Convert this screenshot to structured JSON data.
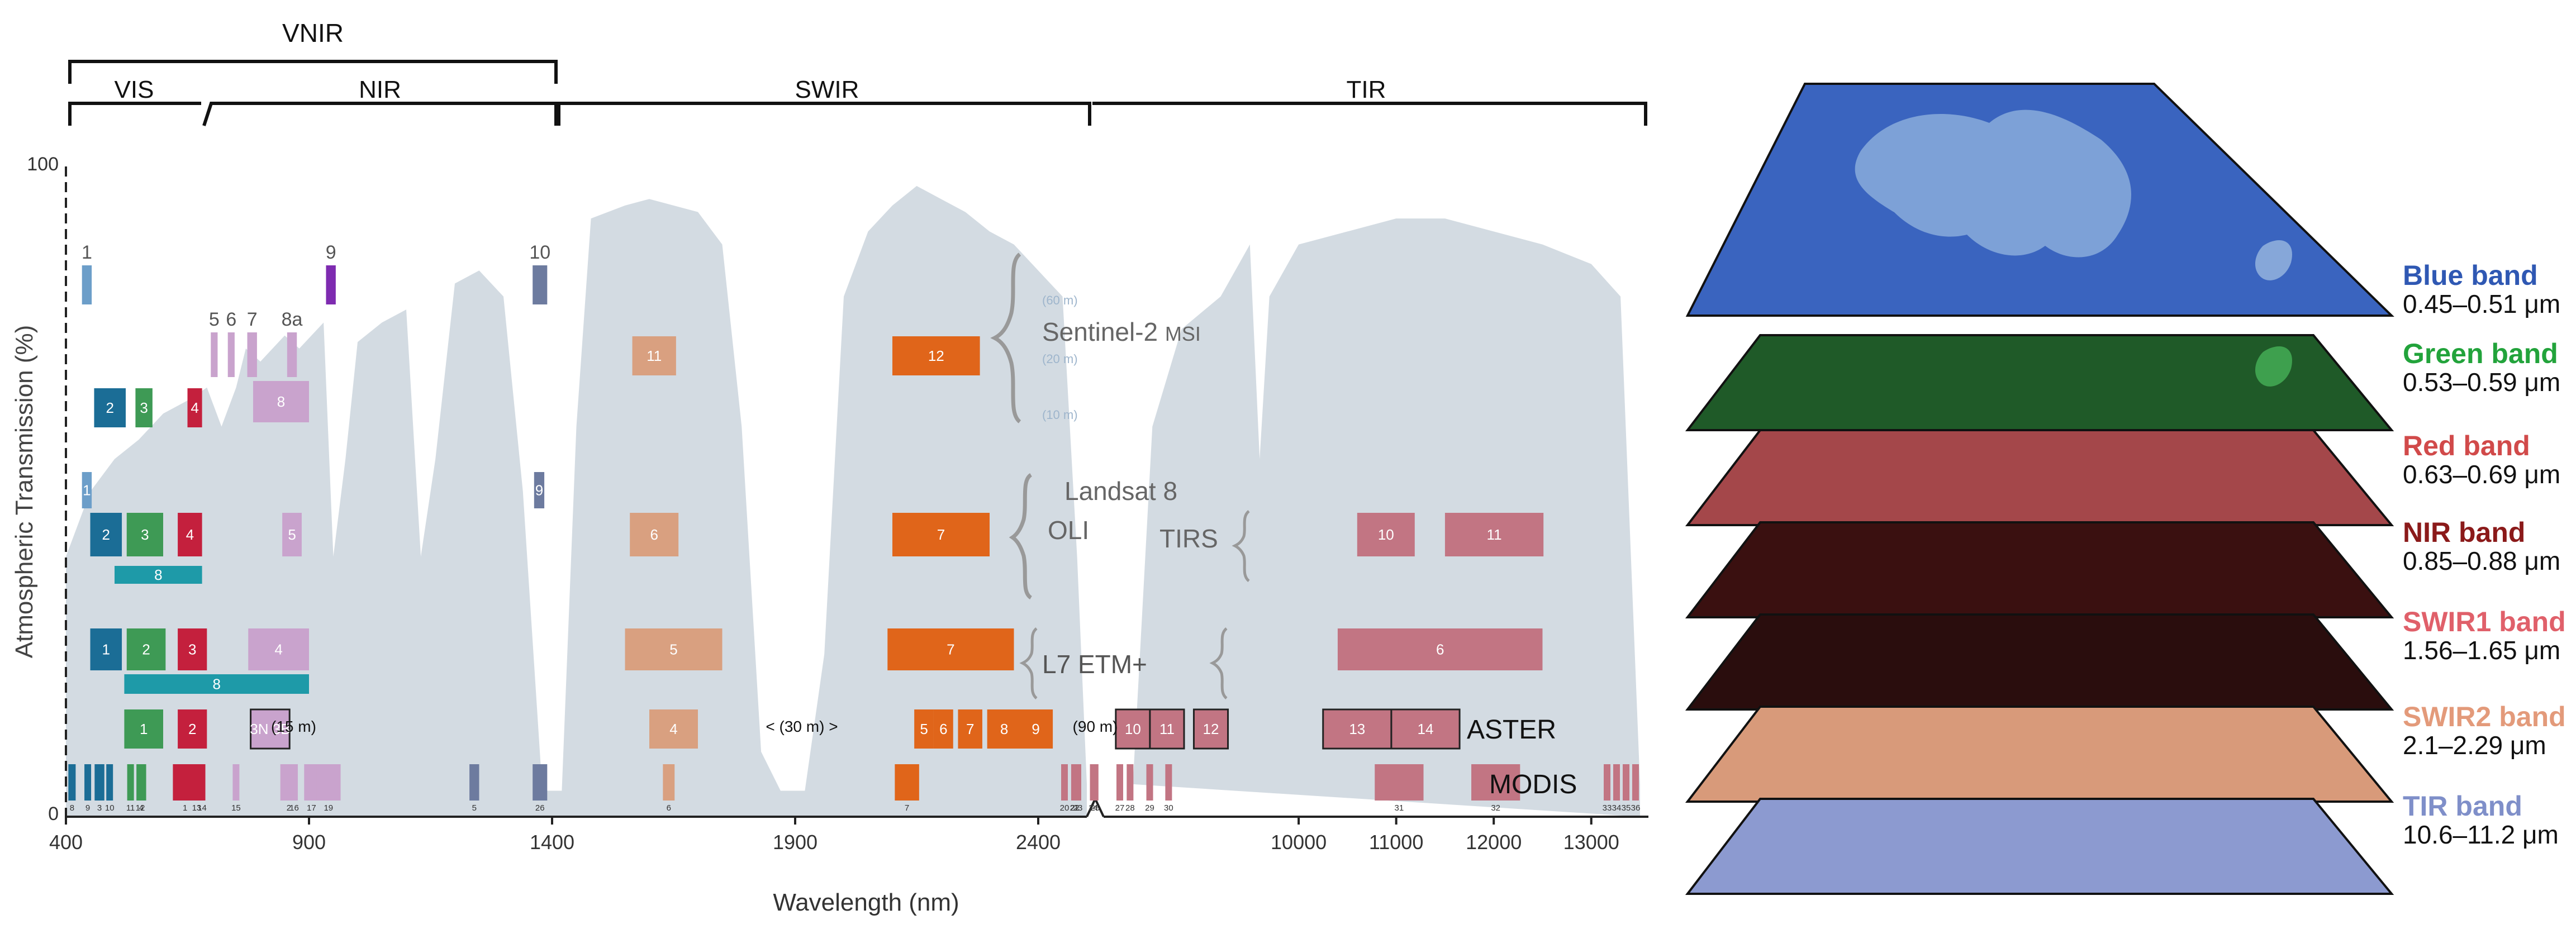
{
  "chart_data": {
    "type": "band-chart",
    "ylabel": "Atmospheric Transmission (%)",
    "xlabel": "Wavelength (nm)",
    "yticks": [
      "100",
      "0"
    ],
    "xticks_left": [
      "400",
      "900",
      "1400",
      "1900",
      "2400"
    ],
    "xticks_right": [
      "10000",
      "11000",
      "12000",
      "13000"
    ],
    "regions": [
      {
        "label": "VNIR",
        "from": 400,
        "to": 1400
      },
      {
        "label": "VIS",
        "from": 400,
        "to": 700
      },
      {
        "label": "NIR",
        "from": 700,
        "to": 1400
      },
      {
        "label": "SWIR",
        "from": 1400,
        "to": 2500
      },
      {
        "label": "TIR",
        "from": 2500,
        "to": 13500
      }
    ],
    "transmission": [
      [
        400,
        40
      ],
      [
        450,
        50
      ],
      [
        500,
        55
      ],
      [
        550,
        58
      ],
      [
        600,
        62
      ],
      [
        650,
        64
      ],
      [
        690,
        66
      ],
      [
        720,
        60
      ],
      [
        750,
        66
      ],
      [
        770,
        72
      ],
      [
        800,
        70
      ],
      [
        850,
        74
      ],
      [
        880,
        72
      ],
      [
        930,
        76
      ],
      [
        950,
        40
      ],
      [
        975,
        55
      ],
      [
        1000,
        73
      ],
      [
        1050,
        76
      ],
      [
        1100,
        78
      ],
      [
        1130,
        40
      ],
      [
        1160,
        55
      ],
      [
        1200,
        82
      ],
      [
        1250,
        84
      ],
      [
        1300,
        80
      ],
      [
        1340,
        50
      ],
      [
        1380,
        4
      ],
      [
        1420,
        4
      ],
      [
        1450,
        60
      ],
      [
        1480,
        92
      ],
      [
        1550,
        94
      ],
      [
        1600,
        95
      ],
      [
        1650,
        94
      ],
      [
        1700,
        93
      ],
      [
        1750,
        88
      ],
      [
        1790,
        60
      ],
      [
        1830,
        10
      ],
      [
        1870,
        4
      ],
      [
        1920,
        4
      ],
      [
        1960,
        25
      ],
      [
        2000,
        80
      ],
      [
        2050,
        90
      ],
      [
        2100,
        94
      ],
      [
        2150,
        97
      ],
      [
        2200,
        95
      ],
      [
        2250,
        93
      ],
      [
        2300,
        90
      ],
      [
        2350,
        88
      ],
      [
        2400,
        84
      ],
      [
        2450,
        80
      ],
      [
        2480,
        40
      ],
      [
        2500,
        5
      ]
    ],
    "transmission_tir": [
      [
        8300,
        5
      ],
      [
        8500,
        60
      ],
      [
        8800,
        75
      ],
      [
        9200,
        80
      ],
      [
        9500,
        88
      ],
      [
        9600,
        55
      ],
      [
        9700,
        80
      ],
      [
        10000,
        88
      ],
      [
        10500,
        90
      ],
      [
        11000,
        92
      ],
      [
        11500,
        92
      ],
      [
        12000,
        90
      ],
      [
        12500,
        88
      ],
      [
        13000,
        85
      ],
      [
        13300,
        80
      ],
      [
        13500,
        5
      ]
    ],
    "sensors": [
      {
        "name": "Sentinel-2",
        "suffix": "MSI",
        "resolutions": [
          "(60 m)",
          "(20 m)",
          "(10 m)"
        ]
      },
      {
        "name": "Landsat 8",
        "instruments": [
          "OLI",
          "TIRS"
        ]
      },
      {
        "name": "L7 ETM+"
      },
      {
        "name": "ASTER",
        "notes": [
          "(15 m)",
          "< (30 m) >",
          "(90 m)"
        ]
      },
      {
        "name": "MODIS"
      }
    ],
    "bands": [
      {
        "sensor": "Sentinel-2",
        "res": "60 m",
        "label": "1",
        "from": 433,
        "to": 453,
        "color": "#6c9ec9",
        "labelPos": "above"
      },
      {
        "sensor": "Sentinel-2",
        "res": "60 m",
        "label": "9",
        "from": 935,
        "to": 955,
        "color": "#7e2bb0",
        "labelPos": "above"
      },
      {
        "sensor": "Sentinel-2",
        "res": "60 m",
        "label": "10",
        "from": 1360,
        "to": 1390,
        "color": "#6d7b9f",
        "labelPos": "above"
      },
      {
        "sensor": "Sentinel-2",
        "res": "20 m",
        "label": "5",
        "from": 698,
        "to": 712,
        "color": "#c9a3cd",
        "labelPos": "above"
      },
      {
        "sensor": "Sentinel-2",
        "res": "20 m",
        "label": "6",
        "from": 733,
        "to": 747,
        "color": "#c9a3cd",
        "labelPos": "above"
      },
      {
        "sensor": "Sentinel-2",
        "res": "20 m",
        "label": "7",
        "from": 773,
        "to": 793,
        "color": "#c9a3cd",
        "labelPos": "above"
      },
      {
        "sensor": "Sentinel-2",
        "res": "20 m",
        "label": "8a",
        "from": 855,
        "to": 875,
        "color": "#c9a3cd",
        "labelPos": "above"
      },
      {
        "sensor": "Sentinel-2",
        "res": "20 m",
        "label": "11",
        "from": 1565,
        "to": 1655,
        "color": "#d9a080",
        "labelPos": "in"
      },
      {
        "sensor": "Sentinel-2",
        "res": "20 m",
        "label": "12",
        "from": 2100,
        "to": 2280,
        "color": "#e0651a",
        "labelPos": "in"
      },
      {
        "sensor": "Sentinel-2",
        "res": "10 m",
        "label": "2",
        "from": 458,
        "to": 523,
        "color": "#1b6d96",
        "labelPos": "in"
      },
      {
        "sensor": "Sentinel-2",
        "res": "10 m",
        "label": "3",
        "from": 543,
        "to": 578,
        "color": "#3e9a55",
        "labelPos": "in"
      },
      {
        "sensor": "Sentinel-2",
        "res": "10 m",
        "label": "4",
        "from": 650,
        "to": 680,
        "color": "#c4203d",
        "labelPos": "in"
      },
      {
        "sensor": "Sentinel-2",
        "res": "10 m",
        "label": "8",
        "from": 785,
        "to": 900,
        "color": "#c9a3cd",
        "labelPos": "in"
      },
      {
        "sensor": "Landsat 8",
        "label": "1",
        "from": 433,
        "to": 453,
        "color": "#6c9ec9",
        "labelPos": "in"
      },
      {
        "sensor": "Landsat 8",
        "label": "9",
        "from": 1363,
        "to": 1384,
        "color": "#6d7b9f",
        "labelPos": "in"
      },
      {
        "sensor": "Landsat 8",
        "label": "2",
        "from": 450,
        "to": 515,
        "color": "#1b6d96",
        "labelPos": "in"
      },
      {
        "sensor": "Landsat 8",
        "label": "3",
        "from": 525,
        "to": 600,
        "color": "#3e9a55",
        "labelPos": "in"
      },
      {
        "sensor": "Landsat 8",
        "label": "4",
        "from": 630,
        "to": 680,
        "color": "#c4203d",
        "labelPos": "in"
      },
      {
        "sensor": "Landsat 8",
        "label": "5",
        "from": 845,
        "to": 885,
        "color": "#c9a3cd",
        "labelPos": "in"
      },
      {
        "sensor": "Landsat 8",
        "label": "8",
        "from": 500,
        "to": 680,
        "color": "#1e9aa8",
        "labelPos": "in",
        "row": "pan"
      },
      {
        "sensor": "Landsat 8",
        "label": "6",
        "from": 1560,
        "to": 1660,
        "color": "#d9a080",
        "labelPos": "in"
      },
      {
        "sensor": "Landsat 8",
        "label": "7",
        "from": 2100,
        "to": 2300,
        "color": "#e0651a",
        "labelPos": "in"
      },
      {
        "sensor": "Landsat 8",
        "label": "10",
        "from": 10600,
        "to": 11190,
        "color": "#c27583",
        "labelPos": "in"
      },
      {
        "sensor": "Landsat 8",
        "label": "11",
        "from": 11500,
        "to": 12510,
        "color": "#c27583",
        "labelPos": "in"
      },
      {
        "sensor": "L7 ETM+",
        "label": "1",
        "from": 450,
        "to": 515,
        "color": "#1b6d96",
        "labelPos": "in"
      },
      {
        "sensor": "L7 ETM+",
        "label": "2",
        "from": 525,
        "to": 605,
        "color": "#3e9a55",
        "labelPos": "in"
      },
      {
        "sensor": "L7 ETM+",
        "label": "3",
        "from": 630,
        "to": 690,
        "color": "#c4203d",
        "labelPos": "in"
      },
      {
        "sensor": "L7 ETM+",
        "label": "4",
        "from": 775,
        "to": 900,
        "color": "#c9a3cd",
        "labelPos": "in"
      },
      {
        "sensor": "L7 ETM+",
        "label": "8",
        "from": 520,
        "to": 900,
        "color": "#1e9aa8",
        "labelPos": "in",
        "row": "pan"
      },
      {
        "sensor": "L7 ETM+",
        "label": "5",
        "from": 1550,
        "to": 1750,
        "color": "#d9a080",
        "labelPos": "in"
      },
      {
        "sensor": "L7 ETM+",
        "label": "7",
        "from": 2090,
        "to": 2350,
        "color": "#e0651a",
        "labelPos": "in"
      },
      {
        "sensor": "L7 ETM+",
        "label": "6",
        "from": 10400,
        "to": 12500,
        "color": "#c27583",
        "labelPos": "in"
      },
      {
        "sensor": "ASTER",
        "label": "1",
        "from": 520,
        "to": 600,
        "color": "#3e9a55",
        "labelPos": "in"
      },
      {
        "sensor": "ASTER",
        "label": "2",
        "from": 630,
        "to": 690,
        "color": "#c4203d",
        "labelPos": "in"
      },
      {
        "sensor": "ASTER",
        "label": "3N 3B",
        "from": 780,
        "to": 860,
        "color": "#c9a3cd",
        "labelPos": "in",
        "outlined": true
      },
      {
        "sensor": "ASTER",
        "label": "4",
        "from": 1600,
        "to": 1700,
        "color": "#d9a080",
        "labelPos": "in"
      },
      {
        "sensor": "ASTER",
        "label": "5",
        "from": 2145,
        "to": 2185,
        "color": "#e0651a",
        "labelPos": "in"
      },
      {
        "sensor": "ASTER",
        "label": "6",
        "from": 2185,
        "to": 2225,
        "color": "#e0651a",
        "labelPos": "in"
      },
      {
        "sensor": "ASTER",
        "label": "7",
        "from": 2235,
        "to": 2285,
        "color": "#e0651a",
        "labelPos": "in"
      },
      {
        "sensor": "ASTER",
        "label": "8",
        "from": 2295,
        "to": 2365,
        "color": "#e0651a",
        "labelPos": "in"
      },
      {
        "sensor": "ASTER",
        "label": "9",
        "from": 2360,
        "to": 2430,
        "color": "#e0651a",
        "labelPos": "in"
      },
      {
        "sensor": "ASTER",
        "label": "10",
        "from": 8125,
        "to": 8475,
        "color": "#c27583",
        "labelPos": "in",
        "outlined": true
      },
      {
        "sensor": "ASTER",
        "label": "11",
        "from": 8475,
        "to": 8825,
        "color": "#c27583",
        "labelPos": "in",
        "outlined": true
      },
      {
        "sensor": "ASTER",
        "label": "12",
        "from": 8925,
        "to": 9275,
        "color": "#c27583",
        "labelPos": "in",
        "outlined": true
      },
      {
        "sensor": "ASTER",
        "label": "13",
        "from": 10250,
        "to": 10950,
        "color": "#c27583",
        "labelPos": "in",
        "outlined": true
      },
      {
        "sensor": "ASTER",
        "label": "14",
        "from": 10950,
        "to": 11650,
        "color": "#c27583",
        "labelPos": "in",
        "outlined": true
      },
      {
        "sensor": "MODIS",
        "label": "8",
        "from": 405,
        "to": 420,
        "color": "#1b6d96",
        "labelPos": "below"
      },
      {
        "sensor": "MODIS",
        "label": "9",
        "from": 438,
        "to": 448,
        "color": "#1b6d96",
        "labelPos": "below"
      },
      {
        "sensor": "MODIS",
        "label": "3",
        "from": 459,
        "to": 479,
        "color": "#1b6d96",
        "labelPos": "below"
      },
      {
        "sensor": "MODIS",
        "label": "10",
        "from": 483,
        "to": 493,
        "color": "#1b6d96",
        "labelPos": "below"
      },
      {
        "sensor": "MODIS",
        "label": "11",
        "from": 526,
        "to": 536,
        "color": "#3e9a55",
        "labelPos": "below"
      },
      {
        "sensor": "MODIS",
        "label": "12",
        "from": 546,
        "to": 556,
        "color": "#3e9a55",
        "labelPos": "below"
      },
      {
        "sensor": "MODIS",
        "label": "4",
        "from": 545,
        "to": 565,
        "color": "#3e9a55",
        "labelPos": "below"
      },
      {
        "sensor": "MODIS",
        "label": "1",
        "from": 620,
        "to": 670,
        "color": "#c4203d",
        "labelPos": "below"
      },
      {
        "sensor": "MODIS",
        "label": "13",
        "from": 662,
        "to": 672,
        "color": "#c4203d",
        "labelPos": "below"
      },
      {
        "sensor": "MODIS",
        "label": "14",
        "from": 673,
        "to": 683,
        "color": "#c4203d",
        "labelPos": "below"
      },
      {
        "sensor": "MODIS",
        "label": "15",
        "from": 743,
        "to": 753,
        "color": "#c9a3cd",
        "labelPos": "below"
      },
      {
        "sensor": "MODIS",
        "label": "2",
        "from": 841,
        "to": 876,
        "color": "#c9a3cd",
        "labelPos": "below"
      },
      {
        "sensor": "MODIS",
        "label": "16",
        "from": 862,
        "to": 877,
        "color": "#c9a3cd",
        "labelPos": "below"
      },
      {
        "sensor": "MODIS",
        "label": "17",
        "from": 890,
        "to": 920,
        "color": "#c9a3cd",
        "labelPos": "below"
      },
      {
        "sensor": "MODIS",
        "label": "19",
        "from": 915,
        "to": 965,
        "color": "#c9a3cd",
        "labelPos": "below"
      },
      {
        "sensor": "MODIS",
        "label": "5",
        "from": 1230,
        "to": 1250,
        "color": "#6d7b9f",
        "labelPos": "below"
      },
      {
        "sensor": "MODIS",
        "label": "26",
        "from": 1360,
        "to": 1390,
        "color": "#6d7b9f",
        "labelPos": "below"
      },
      {
        "sensor": "MODIS",
        "label": "6",
        "from": 1628,
        "to": 1652,
        "color": "#d9a080",
        "labelPos": "below"
      },
      {
        "sensor": "MODIS",
        "label": "7",
        "from": 2105,
        "to": 2155,
        "color": "#e0651a",
        "labelPos": "below"
      },
      {
        "sensor": "MODIS",
        "label": "20",
        "from": 3660,
        "to": 3840,
        "color": "#c27583",
        "labelPos": "below"
      },
      {
        "sensor": "MODIS",
        "label": "21",
        "from": 3929,
        "to": 3989,
        "color": "#c27583",
        "labelPos": "below"
      },
      {
        "sensor": "MODIS",
        "label": "22",
        "from": 3940,
        "to": 4000,
        "color": "#c27583",
        "labelPos": "below"
      },
      {
        "sensor": "MODIS",
        "label": "23",
        "from": 4020,
        "to": 4080,
        "color": "#c27583",
        "labelPos": "below"
      },
      {
        "sensor": "MODIS",
        "label": "24",
        "from": 4433,
        "to": 4498,
        "color": "#c27583",
        "labelPos": "below"
      },
      {
        "sensor": "MODIS",
        "label": "25",
        "from": 4482,
        "to": 4549,
        "color": "#c27583",
        "labelPos": "below"
      },
      {
        "sensor": "MODIS",
        "label": "27",
        "from": 6535,
        "to": 6895,
        "color": "#c27583",
        "labelPos": "below"
      },
      {
        "sensor": "MODIS",
        "label": "28",
        "from": 7175,
        "to": 7475,
        "color": "#c27583",
        "labelPos": "below"
      },
      {
        "sensor": "MODIS",
        "label": "29",
        "from": 8400,
        "to": 8700,
        "color": "#c27583",
        "labelPos": "below"
      },
      {
        "sensor": "MODIS",
        "label": "30",
        "from": 9580,
        "to": 9880,
        "color": "#c27583",
        "labelPos": "below"
      },
      {
        "sensor": "MODIS",
        "label": "31",
        "from": 10780,
        "to": 11280,
        "color": "#c27583",
        "labelPos": "below"
      },
      {
        "sensor": "MODIS",
        "label": "32",
        "from": 11770,
        "to": 12270,
        "color": "#c27583",
        "labelPos": "below"
      },
      {
        "sensor": "MODIS",
        "label": "33",
        "from": 13185,
        "to": 13485,
        "color": "#c27583",
        "labelPos": "below"
      },
      {
        "sensor": "MODIS",
        "label": "34",
        "from": 13485,
        "to": 13785,
        "color": "#c27583",
        "labelPos": "below"
      },
      {
        "sensor": "MODIS",
        "label": "35",
        "from": 13785,
        "to": 14085,
        "color": "#c27583",
        "labelPos": "below"
      },
      {
        "sensor": "MODIS",
        "label": "36",
        "from": 14085,
        "to": 14385,
        "color": "#c27583",
        "labelPos": "below"
      }
    ]
  },
  "layers": [
    {
      "name": "Blue band",
      "range": "0.45–0.51 μm",
      "color": "#2f58b3",
      "fill": "#3a64bf"
    },
    {
      "name": "Green band",
      "range": "0.53–0.59 μm",
      "color": "#22a33b",
      "fill": "#1f5a28"
    },
    {
      "name": "Red band",
      "range": "0.63–0.69 μm",
      "color": "#d14a4a",
      "fill": "#a4474a"
    },
    {
      "name": "NIR band",
      "range": "0.85–0.88 μm",
      "color": "#8b1a1a",
      "fill": "#3a1010"
    },
    {
      "name": "SWIR1 band",
      "range": "1.56–1.65 μm",
      "color": "#e0606a",
      "fill": "#2a0d0d"
    },
    {
      "name": "SWIR2 band",
      "range": "2.1–2.29 μm",
      "color": "#e39a7a",
      "fill": "#d89a7a"
    },
    {
      "name": "TIR band",
      "range": "10.6–11.2 μm",
      "color": "#7f8fc9",
      "fill": "#8c9ad0"
    }
  ]
}
